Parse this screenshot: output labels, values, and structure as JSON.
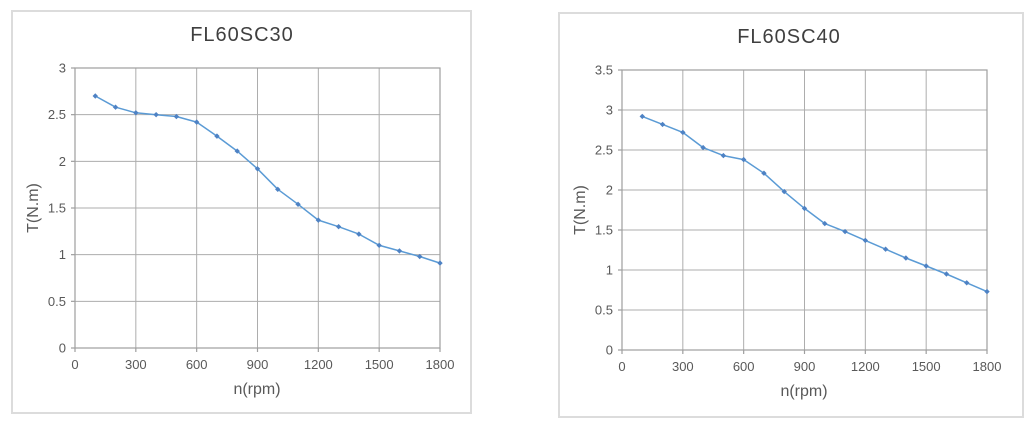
{
  "window": {
    "background": "#ffffff"
  },
  "colors": {
    "card_border": "#dcdcdc",
    "card_background": "#ffffff",
    "grid_line": "#adadad",
    "plot_border": "#9e9e9e",
    "tick_mark": "#9e9e9e",
    "series_line": "#5b9bd5",
    "series_marker": "#4e82c4",
    "tick_label_text": "#595959",
    "axis_title_text": "#595959",
    "chart_title_text": "#3f3f3f"
  },
  "chart_data": [
    {
      "type": "line",
      "title": "FL60SC30",
      "xlabel": "n(rpm)",
      "ylabel": "T(N.m)",
      "xlim": [
        0,
        1800
      ],
      "ylim": [
        0,
        3
      ],
      "xticks": [
        0,
        300,
        600,
        900,
        1200,
        1500,
        1800
      ],
      "yticks": [
        0,
        0.5,
        1,
        1.5,
        2,
        2.5,
        3
      ],
      "grid": true,
      "legend": "none",
      "marker": "diamond",
      "x": [
        100,
        200,
        300,
        400,
        500,
        600,
        700,
        800,
        900,
        1000,
        1100,
        1200,
        1300,
        1400,
        1500,
        1600,
        1700,
        1800
      ],
      "y": [
        2.7,
        2.58,
        2.52,
        2.5,
        2.48,
        2.42,
        2.27,
        2.11,
        1.92,
        1.7,
        1.54,
        1.37,
        1.3,
        1.22,
        1.1,
        1.04,
        0.98,
        0.91
      ]
    },
    {
      "type": "line",
      "title": "FL60SC40",
      "xlabel": "n(rpm)",
      "ylabel": "T(N.m)",
      "xlim": [
        0,
        1800
      ],
      "ylim": [
        0,
        3.5
      ],
      "xticks": [
        0,
        300,
        600,
        900,
        1200,
        1500,
        1800
      ],
      "yticks": [
        0,
        0.5,
        1,
        1.5,
        2,
        2.5,
        3,
        3.5
      ],
      "grid": true,
      "legend": "none",
      "marker": "diamond",
      "x": [
        100,
        200,
        300,
        400,
        500,
        600,
        700,
        800,
        900,
        1000,
        1100,
        1200,
        1300,
        1400,
        1500,
        1600,
        1700,
        1800
      ],
      "y": [
        2.92,
        2.82,
        2.72,
        2.53,
        2.43,
        2.38,
        2.21,
        1.98,
        1.77,
        1.58,
        1.48,
        1.37,
        1.26,
        1.15,
        1.05,
        0.95,
        0.84,
        0.73
      ]
    }
  ]
}
